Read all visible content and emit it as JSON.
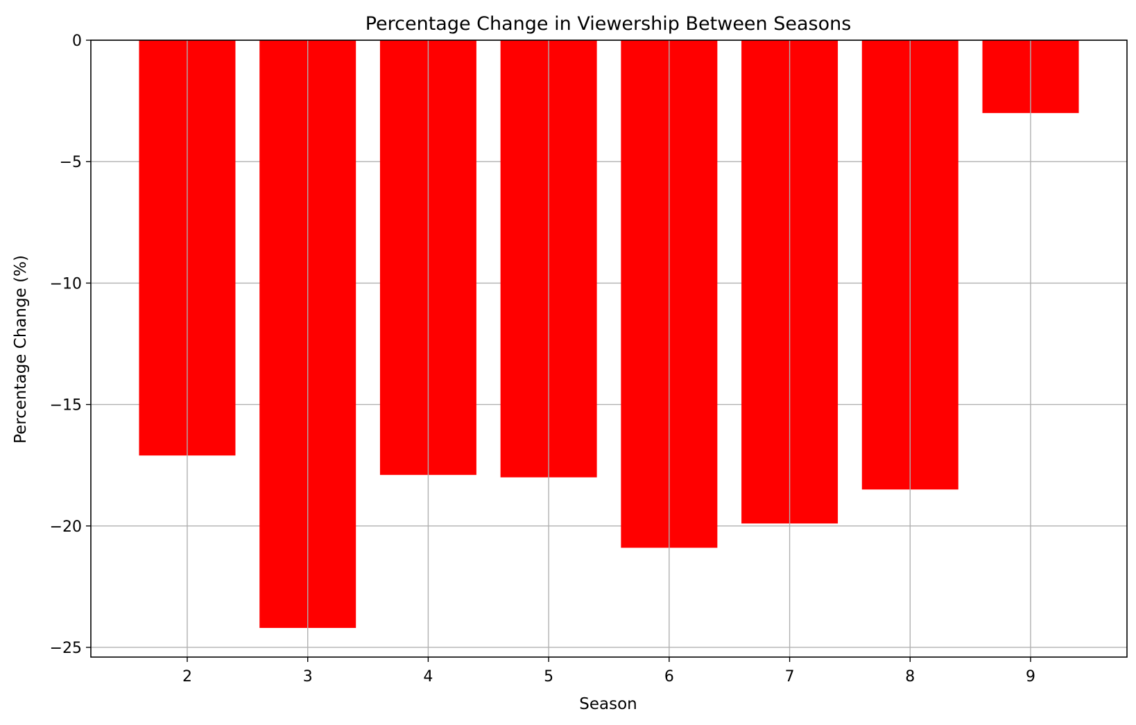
{
  "chart_data": {
    "type": "bar",
    "title": "Percentage Change in Viewership Between Seasons",
    "xlabel": "Season",
    "ylabel": "Percentage Change (%)",
    "categories": [
      "2",
      "3",
      "4",
      "5",
      "6",
      "7",
      "8",
      "9"
    ],
    "x": [
      2,
      3,
      4,
      5,
      6,
      7,
      8,
      9
    ],
    "values": [
      -17.1,
      -24.2,
      -17.9,
      -18.0,
      -20.9,
      -19.9,
      -18.5,
      -3.0
    ],
    "xlim": [
      1.2,
      9.8
    ],
    "ylim": [
      -25.4,
      0
    ],
    "yticks": [
      0,
      -5,
      -10,
      -15,
      -20,
      -25
    ],
    "ytick_labels": [
      "0",
      "−5",
      "−10",
      "−15",
      "−20",
      "−25"
    ],
    "bar_color": "#ff0000",
    "grid": true,
    "legend": "none"
  }
}
